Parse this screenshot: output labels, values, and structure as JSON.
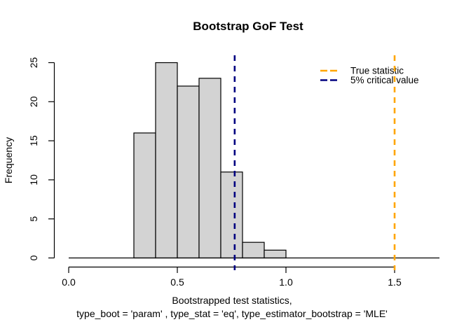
{
  "chart_data": {
    "type": "bar",
    "subtype": "histogram",
    "title": "Bootstrap GoF Test",
    "xlabel_line1": "Bootstrapped test statistics,",
    "xlabel_line2": "type_boot = 'param' , type_stat = 'eq', type_estimator_bootstrap = 'MLE'",
    "ylabel": "Frequency",
    "bin_breaks": [
      0.3,
      0.4,
      0.5,
      0.6,
      0.7,
      0.8,
      0.9,
      1.0
    ],
    "counts": [
      16,
      25,
      22,
      23,
      11,
      2,
      1
    ],
    "bar_fill": "#D3D3D3",
    "bar_border": "#000000",
    "xlim": [
      0,
      1.7
    ],
    "ylim": [
      0,
      25
    ],
    "xticks": [
      0.0,
      0.5,
      1.0,
      1.5
    ],
    "xtick_labels": [
      "0.0",
      "0.5",
      "1.0",
      "1.5"
    ],
    "yticks": [
      0,
      5,
      10,
      15,
      20,
      25
    ],
    "ytick_labels": [
      "0",
      "5",
      "10",
      "15",
      "20",
      "25"
    ],
    "grid": false,
    "legend_position": "top-right-inside",
    "vlines": [
      {
        "value": 1.5,
        "color": "#FFA500",
        "style": "dashed",
        "label": "True statistic"
      },
      {
        "value": 0.764,
        "color": "#000080",
        "style": "dashed",
        "label": "5% critical value"
      }
    ],
    "legend": [
      {
        "label": "True statistic",
        "color": "#FFA500",
        "style": "dashed"
      },
      {
        "label": "5% critical value",
        "color": "#000080",
        "style": "dashed"
      }
    ]
  }
}
